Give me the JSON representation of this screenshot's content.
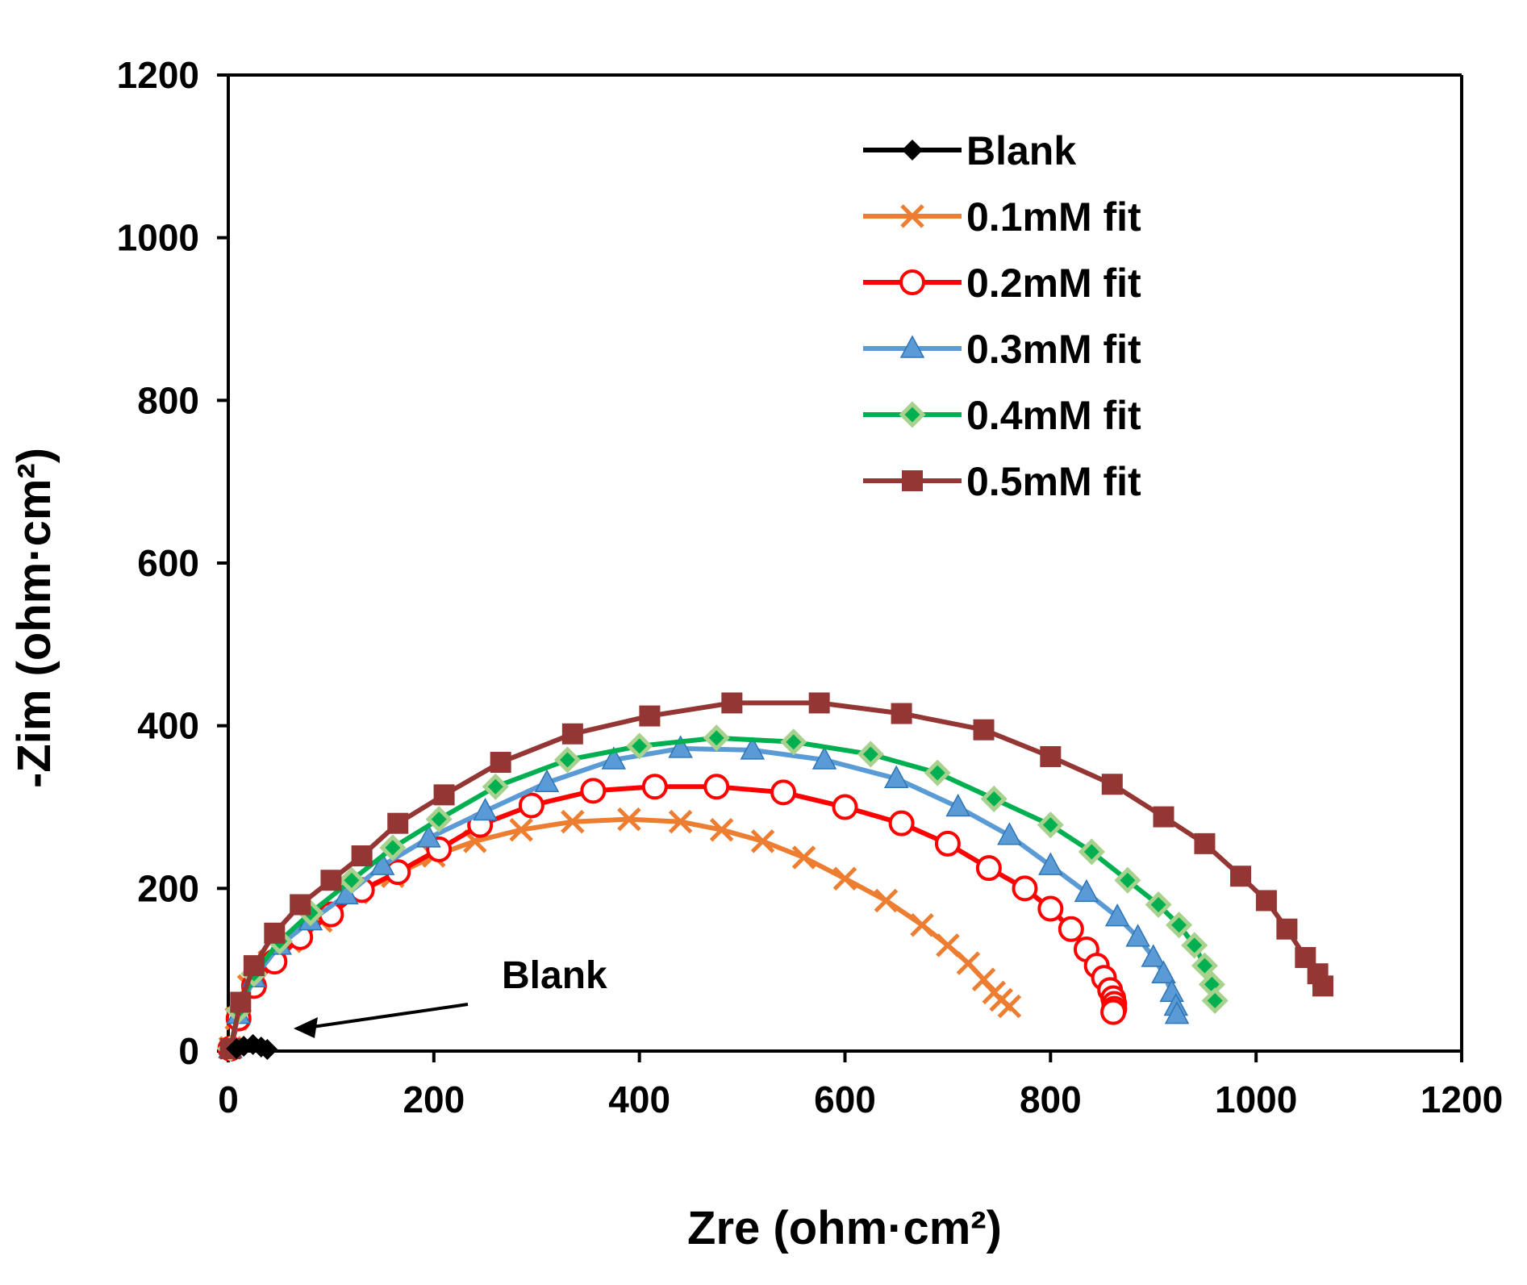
{
  "chart_data": {
    "type": "scatter",
    "xlabel": "Zre (ohm·cm²)",
    "ylabel": "-Zim (ohm·cm²)",
    "xlim": [
      0,
      1200
    ],
    "ylim": [
      0,
      1200
    ],
    "xticks": [
      "0",
      "200",
      "400",
      "600",
      "800",
      "1000",
      "1200"
    ],
    "yticks": [
      "0",
      "200",
      "400",
      "600",
      "800",
      "1000",
      "1200"
    ],
    "grid": false,
    "legend_position": "top-right",
    "annotation": {
      "text": "Blank",
      "arrow_to": [
        40,
        2
      ]
    },
    "series": [
      {
        "name": "Blank",
        "color": "#000000",
        "marker": "diamond",
        "points": [
          [
            8,
            3
          ],
          [
            15,
            6
          ],
          [
            24,
            8
          ],
          [
            32,
            5
          ],
          [
            38,
            2
          ]
        ]
      },
      {
        "name": "0.1mM fit",
        "color": "#ED7D31",
        "marker": "x",
        "points": [
          [
            2,
            4
          ],
          [
            8,
            40
          ],
          [
            20,
            80
          ],
          [
            40,
            110
          ],
          [
            60,
            135
          ],
          [
            90,
            160
          ],
          [
            125,
            195
          ],
          [
            160,
            215
          ],
          [
            200,
            240
          ],
          [
            240,
            258
          ],
          [
            285,
            272
          ],
          [
            335,
            282
          ],
          [
            390,
            285
          ],
          [
            440,
            282
          ],
          [
            480,
            272
          ],
          [
            520,
            258
          ],
          [
            560,
            238
          ],
          [
            600,
            212
          ],
          [
            640,
            185
          ],
          [
            675,
            155
          ],
          [
            700,
            130
          ],
          [
            720,
            108
          ],
          [
            735,
            88
          ],
          [
            745,
            72
          ],
          [
            752,
            63
          ],
          [
            760,
            55
          ]
        ]
      },
      {
        "name": "0.2mM fit",
        "color": "#FF0000",
        "marker": "circle",
        "points": [
          [
            2,
            3
          ],
          [
            10,
            40
          ],
          [
            25,
            80
          ],
          [
            45,
            110
          ],
          [
            70,
            140
          ],
          [
            100,
            168
          ],
          [
            130,
            198
          ],
          [
            165,
            220
          ],
          [
            205,
            248
          ],
          [
            245,
            278
          ],
          [
            295,
            302
          ],
          [
            355,
            320
          ],
          [
            415,
            325
          ],
          [
            475,
            325
          ],
          [
            540,
            318
          ],
          [
            600,
            300
          ],
          [
            655,
            280
          ],
          [
            700,
            255
          ],
          [
            740,
            225
          ],
          [
            775,
            200
          ],
          [
            800,
            175
          ],
          [
            820,
            150
          ],
          [
            835,
            125
          ],
          [
            845,
            105
          ],
          [
            852,
            90
          ],
          [
            858,
            75
          ],
          [
            861,
            65
          ],
          [
            862,
            58
          ],
          [
            862,
            52
          ],
          [
            861,
            48
          ]
        ]
      },
      {
        "name": "0.3mM fit",
        "color": "#5B9BD5",
        "marker": "triangle",
        "points": [
          [
            2,
            3
          ],
          [
            10,
            45
          ],
          [
            25,
            90
          ],
          [
            50,
            130
          ],
          [
            80,
            160
          ],
          [
            115,
            192
          ],
          [
            150,
            228
          ],
          [
            195,
            262
          ],
          [
            250,
            295
          ],
          [
            310,
            330
          ],
          [
            375,
            358
          ],
          [
            440,
            372
          ],
          [
            510,
            370
          ],
          [
            580,
            358
          ],
          [
            650,
            335
          ],
          [
            710,
            300
          ],
          [
            760,
            265
          ],
          [
            800,
            228
          ],
          [
            835,
            195
          ],
          [
            865,
            165
          ],
          [
            885,
            140
          ],
          [
            900,
            115
          ],
          [
            910,
            95
          ],
          [
            918,
            72
          ],
          [
            922,
            55
          ],
          [
            923,
            45
          ]
        ]
      },
      {
        "name": "0.4mM fit",
        "color": "#00B050",
        "marker": "diamond-fill",
        "points": [
          [
            2,
            3
          ],
          [
            10,
            50
          ],
          [
            25,
            95
          ],
          [
            50,
            135
          ],
          [
            80,
            170
          ],
          [
            120,
            210
          ],
          [
            160,
            250
          ],
          [
            205,
            285
          ],
          [
            260,
            325
          ],
          [
            330,
            358
          ],
          [
            400,
            375
          ],
          [
            475,
            385
          ],
          [
            550,
            380
          ],
          [
            625,
            365
          ],
          [
            690,
            342
          ],
          [
            745,
            310
          ],
          [
            800,
            278
          ],
          [
            840,
            245
          ],
          [
            875,
            210
          ],
          [
            905,
            180
          ],
          [
            925,
            155
          ],
          [
            940,
            130
          ],
          [
            950,
            105
          ],
          [
            957,
            82
          ],
          [
            960,
            62
          ]
        ]
      },
      {
        "name": "0.5mM fit",
        "color": "#943634",
        "marker": "square",
        "points": [
          [
            2,
            3
          ],
          [
            12,
            60
          ],
          [
            25,
            105
          ],
          [
            45,
            145
          ],
          [
            70,
            180
          ],
          [
            100,
            210
          ],
          [
            130,
            240
          ],
          [
            165,
            280
          ],
          [
            210,
            315
          ],
          [
            265,
            355
          ],
          [
            335,
            390
          ],
          [
            410,
            412
          ],
          [
            490,
            428
          ],
          [
            575,
            428
          ],
          [
            655,
            415
          ],
          [
            735,
            395
          ],
          [
            800,
            362
          ],
          [
            860,
            328
          ],
          [
            910,
            288
          ],
          [
            950,
            255
          ],
          [
            985,
            215
          ],
          [
            1010,
            185
          ],
          [
            1030,
            150
          ],
          [
            1048,
            115
          ],
          [
            1060,
            95
          ],
          [
            1065,
            80
          ]
        ]
      }
    ]
  }
}
